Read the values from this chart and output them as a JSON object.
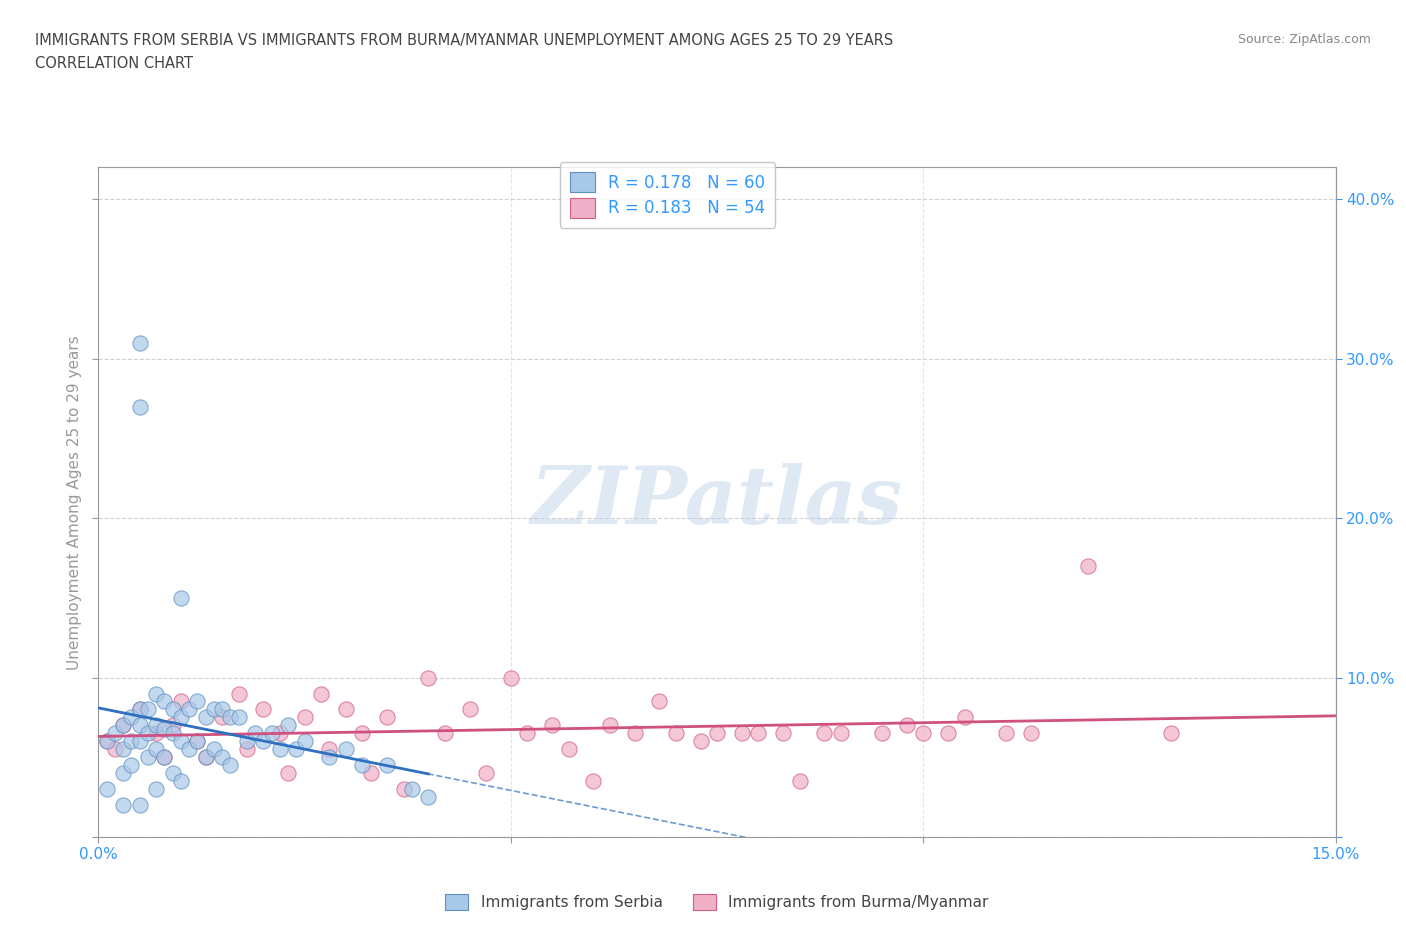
{
  "title_line1": "IMMIGRANTS FROM SERBIA VS IMMIGRANTS FROM BURMA/MYANMAR UNEMPLOYMENT AMONG AGES 25 TO 29 YEARS",
  "title_line2": "CORRELATION CHART",
  "source": "Source: ZipAtlas.com",
  "ylabel": "Unemployment Among Ages 25 to 29 years",
  "xlim": [
    0.0,
    0.15
  ],
  "ylim": [
    0.0,
    0.42
  ],
  "xticks": [
    0.0,
    0.05,
    0.1,
    0.15
  ],
  "xticklabels": [
    "0.0%",
    "",
    "",
    "15.0%"
  ],
  "yticks": [
    0.0,
    0.1,
    0.2,
    0.3,
    0.4
  ],
  "yticklabels_right": [
    "",
    "10.0%",
    "20.0%",
    "30.0%",
    "40.0%"
  ],
  "watermark": "ZIPatlas",
  "serbia_color": "#a8c8e8",
  "burma_color": "#f0b0c8",
  "serbia_edge_color": "#6090c0",
  "burma_edge_color": "#d06080",
  "serbia_line_color": "#3070c0",
  "burma_line_color": "#d05080",
  "R_serbia": 0.178,
  "N_serbia": 60,
  "R_burma": 0.183,
  "N_burma": 54,
  "serbia_scatter_x": [
    0.001,
    0.001,
    0.002,
    0.003,
    0.003,
    0.003,
    0.003,
    0.004,
    0.004,
    0.004,
    0.005,
    0.005,
    0.005,
    0.005,
    0.005,
    0.005,
    0.006,
    0.006,
    0.006,
    0.007,
    0.007,
    0.007,
    0.007,
    0.008,
    0.008,
    0.008,
    0.009,
    0.009,
    0.009,
    0.01,
    0.01,
    0.01,
    0.01,
    0.011,
    0.011,
    0.012,
    0.012,
    0.013,
    0.013,
    0.014,
    0.014,
    0.015,
    0.015,
    0.016,
    0.016,
    0.017,
    0.018,
    0.019,
    0.02,
    0.021,
    0.022,
    0.023,
    0.024,
    0.025,
    0.028,
    0.03,
    0.032,
    0.035,
    0.038,
    0.04
  ],
  "serbia_scatter_y": [
    0.06,
    0.03,
    0.065,
    0.07,
    0.055,
    0.04,
    0.02,
    0.075,
    0.06,
    0.045,
    0.31,
    0.27,
    0.08,
    0.07,
    0.06,
    0.02,
    0.08,
    0.065,
    0.05,
    0.09,
    0.07,
    0.055,
    0.03,
    0.085,
    0.068,
    0.05,
    0.08,
    0.065,
    0.04,
    0.15,
    0.075,
    0.06,
    0.035,
    0.08,
    0.055,
    0.085,
    0.06,
    0.075,
    0.05,
    0.08,
    0.055,
    0.08,
    0.05,
    0.075,
    0.045,
    0.075,
    0.06,
    0.065,
    0.06,
    0.065,
    0.055,
    0.07,
    0.055,
    0.06,
    0.05,
    0.055,
    0.045,
    0.045,
    0.03,
    0.025
  ],
  "burma_scatter_x": [
    0.001,
    0.002,
    0.003,
    0.005,
    0.007,
    0.008,
    0.009,
    0.01,
    0.012,
    0.013,
    0.015,
    0.017,
    0.018,
    0.02,
    0.022,
    0.023,
    0.025,
    0.027,
    0.028,
    0.03,
    0.032,
    0.033,
    0.035,
    0.037,
    0.04,
    0.042,
    0.045,
    0.047,
    0.05,
    0.052,
    0.055,
    0.057,
    0.06,
    0.062,
    0.065,
    0.068,
    0.07,
    0.073,
    0.075,
    0.078,
    0.08,
    0.083,
    0.085,
    0.088,
    0.09,
    0.095,
    0.098,
    0.1,
    0.103,
    0.105,
    0.11,
    0.113,
    0.12,
    0.13
  ],
  "burma_scatter_y": [
    0.06,
    0.055,
    0.07,
    0.08,
    0.065,
    0.05,
    0.07,
    0.085,
    0.06,
    0.05,
    0.075,
    0.09,
    0.055,
    0.08,
    0.065,
    0.04,
    0.075,
    0.09,
    0.055,
    0.08,
    0.065,
    0.04,
    0.075,
    0.03,
    0.1,
    0.065,
    0.08,
    0.04,
    0.1,
    0.065,
    0.07,
    0.055,
    0.035,
    0.07,
    0.065,
    0.085,
    0.065,
    0.06,
    0.065,
    0.065,
    0.065,
    0.065,
    0.035,
    0.065,
    0.065,
    0.065,
    0.07,
    0.065,
    0.065,
    0.075,
    0.065,
    0.065,
    0.17,
    0.065
  ],
  "background_color": "#ffffff",
  "grid_color": "#cccccc",
  "axis_color": "#999999",
  "tick_label_color": "#3399ff",
  "title_color": "#444444",
  "source_color": "#888888"
}
